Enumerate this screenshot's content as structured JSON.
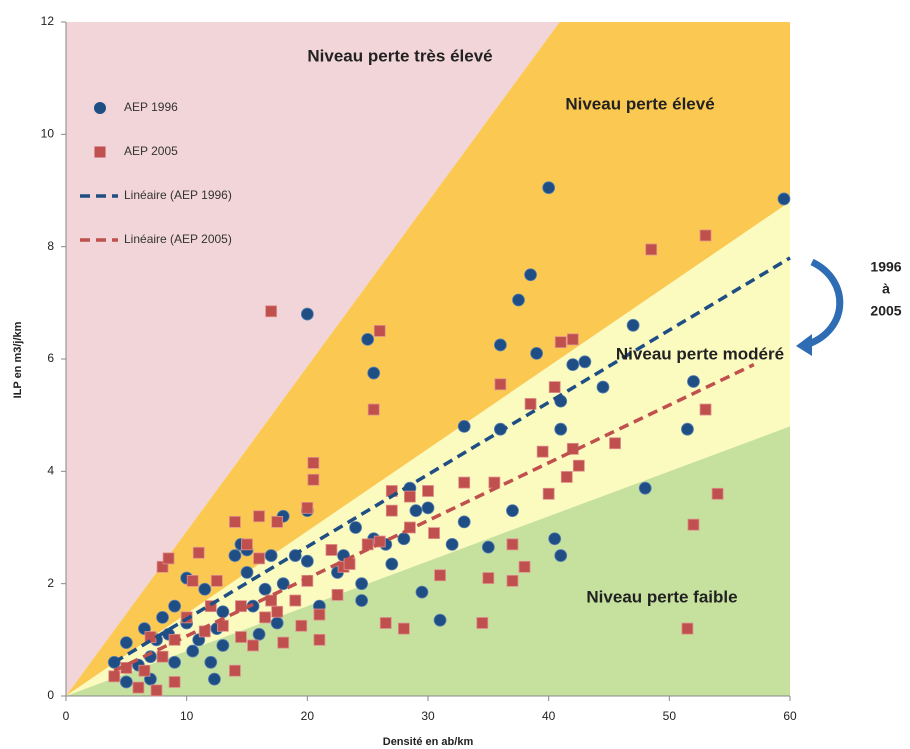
{
  "chart_data": {
    "type": "scatter",
    "x_label": "Densité en ab/km",
    "y_label": "ILP en m3/j/km",
    "xlim": [
      0,
      60
    ],
    "ylim": [
      0,
      12
    ],
    "xticks": [
      0,
      10,
      20,
      30,
      40,
      50,
      60
    ],
    "yticks": [
      0,
      2,
      4,
      6,
      8,
      10,
      12
    ],
    "grid": false,
    "legend": "top-left",
    "annotation": [
      "1996",
      "à",
      "2005"
    ],
    "zones": [
      {
        "name": "Niveau perte très élevé",
        "color": "#f2d5d9",
        "lower": 17.6
      },
      {
        "name": "Niveau perte élevé",
        "color": "#fbc951",
        "lower": 8.8
      },
      {
        "name": "Niveau perte modéré",
        "color": "#fbfbc0",
        "lower": 4.8
      },
      {
        "name": "Niveau perte faible",
        "color": "#c6e09e",
        "lower": 0
      }
    ],
    "series": [
      {
        "name": "AEP 1996",
        "color": "#1f4e84",
        "marker": "circle",
        "x": [
          4,
          5,
          5,
          6,
          6.5,
          7,
          7.5,
          8,
          8.5,
          9,
          9,
          10,
          10.5,
          11,
          11.5,
          12,
          12.3,
          12.5,
          13,
          14,
          14.5,
          15,
          15.5,
          16,
          16.5,
          17,
          17.5,
          18,
          18,
          20,
          20,
          20,
          21,
          22.5,
          23,
          24,
          24.5,
          24.5,
          25,
          25.5,
          25.5,
          26.5,
          27,
          28,
          28.5,
          29,
          29.5,
          30,
          32,
          33,
          33,
          35,
          36,
          36,
          37,
          37.5,
          38.5,
          39,
          40,
          40.5,
          41,
          41,
          41,
          42,
          43,
          44.5,
          47,
          48,
          51.5,
          52,
          59.5,
          10,
          7,
          13,
          15,
          19,
          31
        ],
        "values": [
          0.6,
          0.95,
          0.25,
          0.55,
          1.2,
          0.7,
          1.0,
          1.4,
          1.1,
          1.6,
          0.6,
          1.3,
          0.8,
          1.0,
          1.9,
          0.6,
          0.3,
          1.2,
          0.9,
          2.5,
          2.7,
          2.2,
          1.6,
          1.1,
          1.9,
          2.5,
          1.3,
          3.2,
          2.0,
          3.3,
          6.8,
          2.4,
          1.6,
          2.2,
          2.5,
          3.0,
          2.0,
          1.7,
          6.35,
          5.75,
          2.8,
          2.7,
          2.35,
          2.8,
          3.7,
          3.3,
          1.85,
          3.35,
          2.7,
          4.8,
          3.1,
          2.65,
          6.25,
          4.75,
          3.3,
          7.05,
          7.5,
          6.1,
          9.05,
          2.8,
          2.5,
          4.75,
          5.25,
          5.9,
          5.95,
          5.5,
          6.6,
          3.7,
          4.75,
          5.6,
          8.85,
          2.1,
          0.3,
          1.5,
          2.6,
          2.5,
          1.35
        ]
      },
      {
        "name": "AEP 2005",
        "color": "#c0504d",
        "marker": "square",
        "x": [
          4,
          5,
          6,
          6.5,
          7,
          7.5,
          8,
          8,
          8.5,
          9,
          9,
          10,
          10.5,
          11,
          11.5,
          12,
          12.5,
          13,
          14,
          14,
          14.5,
          14.5,
          15,
          15.5,
          16,
          16,
          16.5,
          17,
          17,
          17.5,
          17.5,
          18,
          19,
          19.5,
          20,
          20,
          20.5,
          20.5,
          21,
          21,
          22,
          22.5,
          23,
          23.5,
          25,
          25.5,
          26,
          26,
          26.5,
          27,
          27,
          28,
          28.5,
          28.5,
          30,
          30.5,
          31,
          33,
          34.5,
          35,
          35.5,
          36,
          37,
          37,
          38,
          38.5,
          39.5,
          40,
          40.5,
          41,
          41.5,
          42,
          42,
          42.5,
          45.5,
          48.5,
          51.5,
          52,
          53,
          53,
          54
        ],
        "values": [
          0.35,
          0.5,
          0.15,
          0.45,
          1.05,
          0.1,
          0.7,
          2.3,
          2.45,
          1.0,
          0.25,
          1.4,
          2.05,
          2.55,
          1.15,
          1.6,
          2.05,
          1.25,
          3.1,
          0.45,
          1.6,
          1.05,
          2.7,
          0.9,
          2.45,
          3.2,
          1.4,
          6.85,
          1.7,
          3.1,
          1.5,
          0.95,
          1.7,
          1.25,
          3.35,
          2.05,
          4.15,
          3.85,
          1.45,
          1.0,
          2.6,
          1.8,
          2.3,
          2.35,
          2.7,
          5.1,
          6.5,
          2.75,
          1.3,
          3.3,
          3.65,
          1.2,
          3.0,
          3.55,
          3.65,
          2.9,
          2.15,
          3.8,
          1.3,
          2.1,
          3.8,
          5.55,
          2.05,
          2.7,
          2.3,
          5.2,
          4.35,
          3.6,
          5.5,
          6.3,
          3.9,
          6.35,
          4.4,
          4.1,
          4.5,
          7.95,
          1.2,
          3.05,
          8.2,
          5.1,
          3.6
        ]
      },
      {
        "name": "Linéaire (AEP 1996)",
        "color": "#1f4e84",
        "marker": "dash",
        "x": [
          4,
          60
        ],
        "values": [
          0.6,
          7.8
        ]
      },
      {
        "name": "Linéaire (AEP 2005)",
        "color": "#c0504d",
        "marker": "dash",
        "x": [
          4,
          57
        ],
        "values": [
          0.45,
          5.9
        ]
      }
    ]
  }
}
